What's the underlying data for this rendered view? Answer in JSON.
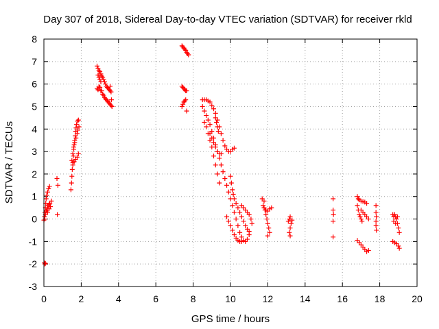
{
  "chart_data": {
    "type": "scatter",
    "title": "Day 307 of 2018, Sidereal Day-to-day VTEC variation (SDTVAR) for receiver rkld",
    "xlabel": "GPS time / hours",
    "ylabel": "SDTVAR / TECUs",
    "xlim": [
      0,
      20
    ],
    "ylim": [
      -3,
      8
    ],
    "xticks": [
      "0",
      "2",
      "4",
      "6",
      "8",
      "10",
      "12",
      "14",
      "16",
      "18",
      "20"
    ],
    "yticks": [
      "-3",
      "-2",
      "-1",
      "0",
      "1",
      "2",
      "3",
      "4",
      "5",
      "6",
      "7",
      "8"
    ],
    "grid": true,
    "marker": "+",
    "marker_color": "#ff0000",
    "series": [
      {
        "name": "SDTVAR",
        "points": [
          [
            0.0,
            -0.05
          ],
          [
            0.03,
            0.1
          ],
          [
            0.05,
            0.3
          ],
          [
            0.08,
            0.5
          ],
          [
            0.1,
            0.7
          ],
          [
            0.12,
            0.9
          ],
          [
            0.15,
            1.05
          ],
          [
            0.2,
            1.2
          ],
          [
            0.25,
            1.35
          ],
          [
            0.3,
            1.45
          ],
          [
            0.05,
            0.0
          ],
          [
            0.08,
            0.2
          ],
          [
            0.12,
            0.35
          ],
          [
            0.18,
            0.5
          ],
          [
            0.22,
            0.6
          ],
          [
            0.28,
            0.65
          ],
          [
            0.32,
            0.7
          ],
          [
            0.15,
            0.4
          ],
          [
            0.2,
            0.3
          ],
          [
            0.28,
            0.45
          ],
          [
            0.35,
            0.55
          ],
          [
            0.4,
            0.8
          ],
          [
            0.02,
            -1.95
          ],
          [
            0.05,
            -2.0
          ],
          [
            0.08,
            -1.97
          ],
          [
            0.7,
            1.8
          ],
          [
            0.75,
            1.5
          ],
          [
            0.72,
            0.2
          ],
          [
            1.45,
            1.3
          ],
          [
            1.48,
            1.6
          ],
          [
            1.5,
            1.9
          ],
          [
            1.52,
            2.2
          ],
          [
            1.55,
            2.5
          ],
          [
            1.58,
            2.8
          ],
          [
            1.6,
            3.1
          ],
          [
            1.62,
            3.3
          ],
          [
            1.65,
            3.5
          ],
          [
            1.68,
            3.7
          ],
          [
            1.7,
            3.9
          ],
          [
            1.72,
            4.05
          ],
          [
            1.75,
            4.2
          ],
          [
            1.8,
            4.35
          ],
          [
            1.85,
            4.4
          ],
          [
            1.5,
            2.6
          ],
          [
            1.55,
            2.9
          ],
          [
            1.6,
            3.2
          ],
          [
            1.65,
            3.4
          ],
          [
            1.72,
            3.6
          ],
          [
            1.78,
            3.8
          ],
          [
            1.82,
            3.95
          ],
          [
            1.88,
            4.1
          ],
          [
            1.55,
            2.4
          ],
          [
            1.62,
            2.55
          ],
          [
            1.7,
            2.65
          ],
          [
            1.78,
            2.75
          ],
          [
            1.85,
            2.9
          ],
          [
            2.85,
            6.8
          ],
          [
            2.9,
            6.7
          ],
          [
            2.95,
            6.6
          ],
          [
            3.0,
            6.55
          ],
          [
            3.05,
            6.45
          ],
          [
            3.1,
            6.35
          ],
          [
            3.15,
            6.3
          ],
          [
            3.2,
            6.2
          ],
          [
            3.25,
            6.1
          ],
          [
            3.3,
            6.0
          ],
          [
            3.35,
            5.9
          ],
          [
            3.4,
            5.85
          ],
          [
            3.45,
            5.8
          ],
          [
            3.5,
            5.75
          ],
          [
            3.55,
            5.7
          ],
          [
            3.6,
            5.65
          ],
          [
            2.9,
            6.4
          ],
          [
            2.95,
            6.3
          ],
          [
            3.0,
            6.2
          ],
          [
            3.05,
            6.1
          ],
          [
            2.85,
            5.8
          ],
          [
            2.9,
            5.75
          ],
          [
            2.95,
            5.9
          ],
          [
            3.0,
            5.85
          ],
          [
            3.05,
            5.7
          ],
          [
            3.1,
            5.7
          ],
          [
            3.15,
            5.55
          ],
          [
            3.2,
            5.5
          ],
          [
            3.25,
            5.4
          ],
          [
            3.3,
            5.35
          ],
          [
            3.35,
            5.3
          ],
          [
            3.4,
            5.25
          ],
          [
            3.45,
            5.2
          ],
          [
            3.5,
            5.15
          ],
          [
            3.55,
            5.1
          ],
          [
            3.6,
            5.05
          ],
          [
            3.65,
            5.0
          ],
          [
            3.55,
            5.9
          ],
          [
            3.62,
            5.3
          ],
          [
            7.4,
            7.7
          ],
          [
            7.45,
            7.65
          ],
          [
            7.5,
            7.6
          ],
          [
            7.55,
            7.55
          ],
          [
            7.6,
            7.5
          ],
          [
            7.65,
            7.4
          ],
          [
            7.7,
            7.35
          ],
          [
            7.75,
            7.3
          ],
          [
            7.4,
            5.9
          ],
          [
            7.45,
            5.85
          ],
          [
            7.5,
            5.8
          ],
          [
            7.55,
            5.75
          ],
          [
            7.6,
            5.7
          ],
          [
            7.65,
            5.7
          ],
          [
            7.4,
            5.0
          ],
          [
            7.45,
            5.1
          ],
          [
            7.5,
            5.2
          ],
          [
            7.55,
            5.25
          ],
          [
            7.6,
            5.3
          ],
          [
            7.65,
            4.8
          ],
          [
            8.5,
            5.0
          ],
          [
            8.6,
            4.8
          ],
          [
            8.7,
            4.6
          ],
          [
            8.8,
            4.4
          ],
          [
            8.9,
            4.2
          ],
          [
            9.0,
            3.9
          ],
          [
            9.1,
            3.6
          ],
          [
            9.2,
            3.3
          ],
          [
            9.3,
            3.0
          ],
          [
            9.4,
            2.7
          ],
          [
            9.5,
            2.4
          ],
          [
            9.6,
            2.1
          ],
          [
            9.7,
            1.8
          ],
          [
            9.8,
            1.5
          ],
          [
            9.9,
            1.2
          ],
          [
            10.0,
            0.9
          ],
          [
            10.1,
            0.6
          ],
          [
            10.2,
            0.3
          ],
          [
            10.3,
            0.0
          ],
          [
            10.4,
            -0.3
          ],
          [
            10.5,
            -0.6
          ],
          [
            10.6,
            -0.8
          ],
          [
            10.7,
            -0.95
          ],
          [
            10.8,
            -1.0
          ],
          [
            10.9,
            -0.9
          ],
          [
            11.0,
            -0.7
          ],
          [
            8.5,
            5.3
          ],
          [
            8.6,
            5.3
          ],
          [
            8.7,
            5.3
          ],
          [
            8.8,
            5.25
          ],
          [
            8.9,
            5.2
          ],
          [
            9.0,
            5.05
          ],
          [
            9.1,
            4.9
          ],
          [
            9.2,
            4.7
          ],
          [
            9.3,
            4.4
          ],
          [
            9.4,
            4.1
          ],
          [
            9.5,
            3.8
          ],
          [
            9.6,
            3.5
          ],
          [
            9.7,
            3.25
          ],
          [
            9.8,
            3.1
          ],
          [
            9.9,
            3.0
          ],
          [
            10.0,
            3.0
          ],
          [
            10.1,
            3.1
          ],
          [
            10.2,
            3.15
          ],
          [
            8.6,
            4.3
          ],
          [
            8.7,
            4.1
          ],
          [
            8.8,
            3.8
          ],
          [
            8.9,
            3.5
          ],
          [
            9.0,
            3.2
          ],
          [
            9.1,
            2.8
          ],
          [
            9.2,
            2.4
          ],
          [
            9.3,
            2.0
          ],
          [
            9.4,
            1.6
          ],
          [
            8.9,
            3.8
          ],
          [
            9.0,
            3.6
          ],
          [
            9.1,
            3.4
          ],
          [
            9.2,
            3.2
          ],
          [
            9.3,
            3.0
          ],
          [
            9.4,
            2.9
          ],
          [
            9.5,
            2.9
          ],
          [
            9.2,
            4.5
          ],
          [
            9.25,
            4.3
          ],
          [
            9.3,
            4.1
          ],
          [
            9.35,
            3.9
          ],
          [
            10.0,
            1.9
          ],
          [
            10.05,
            1.6
          ],
          [
            10.1,
            1.3
          ],
          [
            10.15,
            1.1
          ],
          [
            10.2,
            0.9
          ],
          [
            10.3,
            0.7
          ],
          [
            10.4,
            0.5
          ],
          [
            10.5,
            0.3
          ],
          [
            10.6,
            0.1
          ],
          [
            10.7,
            -0.1
          ],
          [
            10.8,
            -0.3
          ],
          [
            10.9,
            -0.45
          ],
          [
            11.0,
            -0.55
          ],
          [
            9.8,
            0.1
          ],
          [
            9.9,
            -0.1
          ],
          [
            10.0,
            -0.3
          ],
          [
            10.1,
            -0.5
          ],
          [
            10.2,
            -0.7
          ],
          [
            10.3,
            -0.85
          ],
          [
            10.4,
            -0.95
          ],
          [
            10.5,
            -1.0
          ],
          [
            10.6,
            -1.0
          ],
          [
            10.6,
            0.6
          ],
          [
            10.7,
            0.5
          ],
          [
            10.8,
            0.4
          ],
          [
            10.9,
            0.3
          ],
          [
            11.0,
            0.2
          ],
          [
            11.1,
            0.0
          ],
          [
            11.15,
            -0.2
          ],
          [
            11.7,
            0.9
          ],
          [
            11.8,
            0.8
          ],
          [
            11.75,
            0.6
          ],
          [
            11.85,
            0.4
          ],
          [
            11.9,
            0.2
          ],
          [
            11.95,
            0.0
          ],
          [
            12.0,
            -0.2
          ],
          [
            12.05,
            -0.4
          ],
          [
            12.1,
            -0.6
          ],
          [
            12.0,
            -0.75
          ],
          [
            11.8,
            0.5
          ],
          [
            11.9,
            0.4
          ],
          [
            12.0,
            0.35
          ],
          [
            12.1,
            0.45
          ],
          [
            12.2,
            0.5
          ],
          [
            13.1,
            -0.1
          ],
          [
            13.15,
            0.0
          ],
          [
            13.2,
            0.1
          ],
          [
            13.25,
            -0.2
          ],
          [
            13.2,
            -0.4
          ],
          [
            13.15,
            -0.6
          ],
          [
            13.2,
            -0.75
          ],
          [
            13.3,
            -0.05
          ],
          [
            15.5,
            0.9
          ],
          [
            15.5,
            0.4
          ],
          [
            15.52,
            0.2
          ],
          [
            15.5,
            -0.1
          ],
          [
            15.5,
            -0.8
          ],
          [
            16.8,
            1.0
          ],
          [
            16.85,
            0.9
          ],
          [
            16.9,
            0.85
          ],
          [
            17.0,
            0.8
          ],
          [
            17.1,
            0.78
          ],
          [
            17.2,
            0.75
          ],
          [
            17.3,
            0.7
          ],
          [
            16.8,
            0.6
          ],
          [
            16.85,
            0.4
          ],
          [
            16.9,
            0.2
          ],
          [
            16.95,
            0.1
          ],
          [
            17.0,
            0.0
          ],
          [
            17.05,
            -0.1
          ],
          [
            16.8,
            -0.95
          ],
          [
            16.9,
            -1.05
          ],
          [
            17.0,
            -1.15
          ],
          [
            17.1,
            -1.25
          ],
          [
            17.2,
            -1.35
          ],
          [
            17.3,
            -1.45
          ],
          [
            17.4,
            -1.4
          ],
          [
            17.0,
            0.4
          ],
          [
            17.1,
            0.3
          ],
          [
            17.2,
            0.2
          ],
          [
            17.3,
            0.1
          ],
          [
            17.4,
            0.0
          ],
          [
            17.8,
            0.6
          ],
          [
            17.8,
            0.3
          ],
          [
            17.82,
            0.1
          ],
          [
            17.8,
            -0.1
          ],
          [
            17.8,
            -0.3
          ],
          [
            17.82,
            -0.5
          ],
          [
            18.7,
            0.2
          ],
          [
            18.75,
            0.1
          ],
          [
            18.8,
            0.2
          ],
          [
            18.85,
            0.1
          ],
          [
            18.9,
            0.0
          ],
          [
            18.95,
            -0.2
          ],
          [
            19.0,
            -0.4
          ],
          [
            19.05,
            -0.6
          ],
          [
            18.7,
            -1.0
          ],
          [
            18.8,
            -1.05
          ],
          [
            18.9,
            -1.1
          ],
          [
            19.0,
            -1.2
          ],
          [
            19.05,
            -1.3
          ],
          [
            18.75,
            -0.1
          ],
          [
            18.85,
            -0.2
          ],
          [
            18.95,
            0.1
          ]
        ]
      }
    ]
  }
}
